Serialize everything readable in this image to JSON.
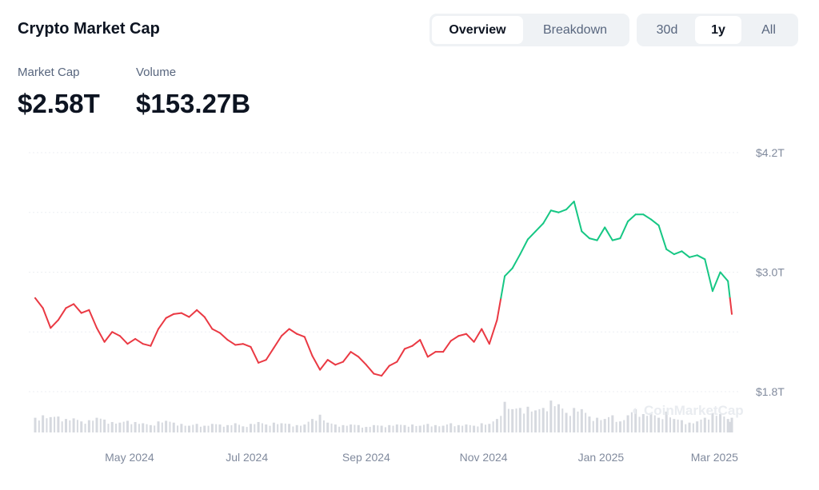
{
  "header": {
    "title": "Crypto Market Cap"
  },
  "view_tabs": [
    {
      "label": "Overview",
      "active": true
    },
    {
      "label": "Breakdown",
      "active": false
    }
  ],
  "range_tabs": [
    {
      "label": "30d",
      "active": false
    },
    {
      "label": "1y",
      "active": true
    },
    {
      "label": "All",
      "active": false
    }
  ],
  "stats": {
    "market_cap_label": "Market Cap",
    "market_cap_value": "$2.58T",
    "volume_label": "Volume",
    "volume_value": "$153.27B"
  },
  "watermark": "CoinMarketCap",
  "colors": {
    "up": "#16c784",
    "down": "#ea3943",
    "volume": "#d6d9df",
    "grid": "#eceff3"
  },
  "chart_data": {
    "type": "line",
    "title": "",
    "ylabel": "",
    "xlabel": "",
    "y_unit": "T USD",
    "ylim": [
      1.8,
      4.2
    ],
    "yticks": [
      {
        "value": 1.8,
        "label": "$1.8T"
      },
      {
        "value": 3.0,
        "label": "$3.0T"
      },
      {
        "value": 4.2,
        "label": "$4.2T"
      }
    ],
    "grid_values": [
      1.8,
      2.4,
      3.0,
      3.6,
      4.2
    ],
    "grid": true,
    "xticks": [
      {
        "date": "2024-05-01",
        "label": "May 2024"
      },
      {
        "date": "2024-07-01",
        "label": "Jul 2024"
      },
      {
        "date": "2024-09-01",
        "label": "Sep 2024"
      },
      {
        "date": "2024-11-01",
        "label": "Nov 2024"
      },
      {
        "date": "2025-01-01",
        "label": "Jan 2025"
      },
      {
        "date": "2025-03-01",
        "label": "Mar 2025"
      }
    ],
    "color_rule": "green above first value, red below",
    "points": [
      [
        "2024-03-13",
        2.74,
        120
      ],
      [
        "2024-03-17",
        2.64,
        140
      ],
      [
        "2024-03-21",
        2.44,
        125
      ],
      [
        "2024-03-25",
        2.52,
        130
      ],
      [
        "2024-03-29",
        2.64,
        110
      ],
      [
        "2024-04-02",
        2.68,
        115
      ],
      [
        "2024-04-06",
        2.59,
        90
      ],
      [
        "2024-04-10",
        2.62,
        100
      ],
      [
        "2024-04-14",
        2.44,
        120
      ],
      [
        "2024-04-18",
        2.3,
        105
      ],
      [
        "2024-04-22",
        2.4,
        85
      ],
      [
        "2024-04-26",
        2.36,
        80
      ],
      [
        "2024-04-30",
        2.28,
        95
      ],
      [
        "2024-05-04",
        2.33,
        85
      ],
      [
        "2024-05-08",
        2.28,
        75
      ],
      [
        "2024-05-12",
        2.26,
        60
      ],
      [
        "2024-05-16",
        2.43,
        90
      ],
      [
        "2024-05-20",
        2.54,
        95
      ],
      [
        "2024-05-24",
        2.58,
        80
      ],
      [
        "2024-05-28",
        2.59,
        70
      ],
      [
        "2024-06-01",
        2.55,
        55
      ],
      [
        "2024-06-05",
        2.62,
        70
      ],
      [
        "2024-06-09",
        2.55,
        55
      ],
      [
        "2024-06-13",
        2.43,
        70
      ],
      [
        "2024-06-17",
        2.39,
        65
      ],
      [
        "2024-06-21",
        2.32,
        60
      ],
      [
        "2024-06-25",
        2.27,
        75
      ],
      [
        "2024-06-29",
        2.28,
        50
      ],
      [
        "2024-07-03",
        2.25,
        70
      ],
      [
        "2024-07-07",
        2.09,
        85
      ],
      [
        "2024-07-11",
        2.12,
        65
      ],
      [
        "2024-07-15",
        2.24,
        80
      ],
      [
        "2024-07-19",
        2.36,
        75
      ],
      [
        "2024-07-23",
        2.43,
        70
      ],
      [
        "2024-07-27",
        2.38,
        60
      ],
      [
        "2024-07-31",
        2.35,
        65
      ],
      [
        "2024-08-04",
        2.16,
        110
      ],
      [
        "2024-08-08",
        2.02,
        145
      ],
      [
        "2024-08-12",
        2.12,
        80
      ],
      [
        "2024-08-16",
        2.07,
        65
      ],
      [
        "2024-08-20",
        2.1,
        60
      ],
      [
        "2024-08-24",
        2.2,
        65
      ],
      [
        "2024-08-28",
        2.15,
        60
      ],
      [
        "2024-09-01",
        2.07,
        45
      ],
      [
        "2024-09-05",
        1.98,
        60
      ],
      [
        "2024-09-09",
        1.96,
        55
      ],
      [
        "2024-09-13",
        2.06,
        60
      ],
      [
        "2024-09-17",
        2.1,
        65
      ],
      [
        "2024-09-21",
        2.23,
        60
      ],
      [
        "2024-09-25",
        2.26,
        65
      ],
      [
        "2024-09-29",
        2.32,
        55
      ],
      [
        "2024-10-03",
        2.15,
        70
      ],
      [
        "2024-10-07",
        2.2,
        60
      ],
      [
        "2024-10-11",
        2.2,
        55
      ],
      [
        "2024-10-15",
        2.31,
        75
      ],
      [
        "2024-10-19",
        2.36,
        60
      ],
      [
        "2024-10-23",
        2.38,
        65
      ],
      [
        "2024-10-27",
        2.3,
        55
      ],
      [
        "2024-10-31",
        2.43,
        75
      ],
      [
        "2024-11-04",
        2.28,
        70
      ],
      [
        "2024-11-08",
        2.52,
        110
      ],
      [
        "2024-11-12",
        2.96,
        250
      ],
      [
        "2024-11-16",
        3.04,
        190
      ],
      [
        "2024-11-20",
        3.18,
        200
      ],
      [
        "2024-11-24",
        3.33,
        210
      ],
      [
        "2024-11-28",
        3.41,
        180
      ],
      [
        "2024-12-02",
        3.49,
        200
      ],
      [
        "2024-12-06",
        3.62,
        260
      ],
      [
        "2024-12-10",
        3.6,
        230
      ],
      [
        "2024-12-14",
        3.63,
        160
      ],
      [
        "2024-12-18",
        3.71,
        200
      ],
      [
        "2024-12-22",
        3.41,
        190
      ],
      [
        "2024-12-26",
        3.34,
        130
      ],
      [
        "2024-12-30",
        3.32,
        120
      ],
      [
        "2025-01-03",
        3.45,
        110
      ],
      [
        "2025-01-07",
        3.32,
        140
      ],
      [
        "2025-01-11",
        3.34,
        90
      ],
      [
        "2025-01-15",
        3.51,
        140
      ],
      [
        "2025-01-19",
        3.58,
        190
      ],
      [
        "2025-01-23",
        3.58,
        150
      ],
      [
        "2025-01-27",
        3.53,
        160
      ],
      [
        "2025-01-31",
        3.47,
        120
      ],
      [
        "2025-02-04",
        3.23,
        170
      ],
      [
        "2025-02-08",
        3.18,
        110
      ],
      [
        "2025-02-12",
        3.21,
        100
      ],
      [
        "2025-02-16",
        3.15,
        80
      ],
      [
        "2025-02-20",
        3.17,
        90
      ],
      [
        "2025-02-24",
        3.13,
        120
      ],
      [
        "2025-02-28",
        2.81,
        160
      ],
      [
        "2025-03-04",
        3.0,
        150
      ],
      [
        "2025-03-08",
        2.91,
        110
      ],
      [
        "2025-03-10",
        2.58,
        120
      ]
    ],
    "point_fields": [
      "date",
      "market_cap_T",
      "volume_B"
    ]
  }
}
